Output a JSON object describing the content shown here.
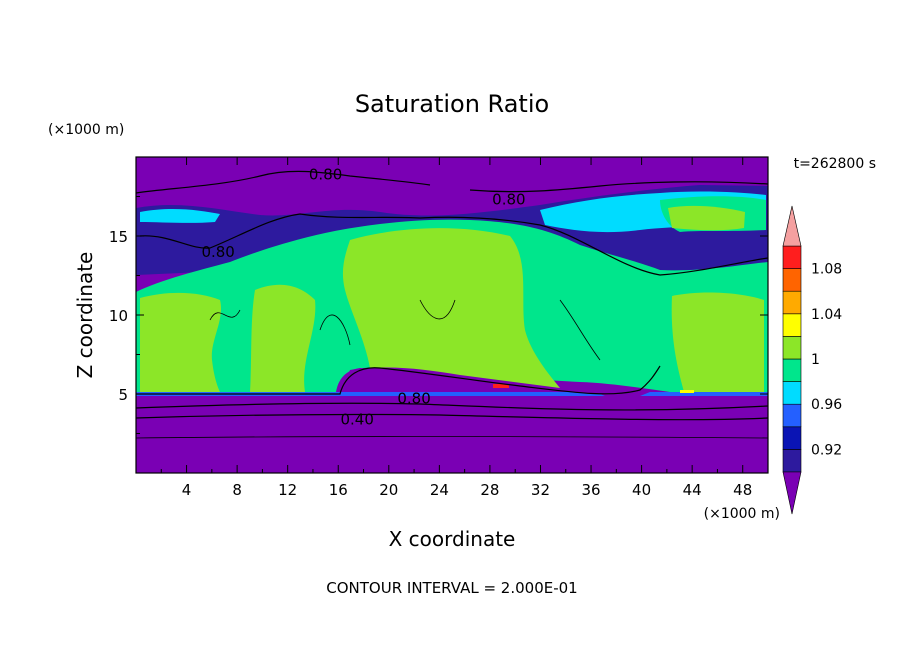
{
  "chart_data": {
    "type": "heatmap",
    "title": "Saturation Ratio",
    "xlabel": "X coordinate",
    "ylabel": "Z coordinate",
    "x_unit": "(×1000 m)",
    "y_unit": "(×1000 m)",
    "time_label": "t=262800 s",
    "contour_interval": "CONTOUR INTERVAL = 2.000E-01",
    "xlim": [
      0,
      50
    ],
    "ylim": [
      0,
      20
    ],
    "x_ticks": [
      4,
      8,
      12,
      16,
      20,
      24,
      28,
      32,
      36,
      40,
      44,
      48
    ],
    "y_ticks": [
      5,
      10,
      15
    ],
    "colorbar": {
      "levels": [
        0.9,
        0.92,
        0.94,
        0.96,
        0.98,
        1.0,
        1.02,
        1.04,
        1.06,
        1.08,
        1.1
      ],
      "tick_labels": [
        "0.92",
        "0.96",
        "1",
        "1.04",
        "1.08"
      ],
      "tick_values": [
        0.92,
        0.96,
        1.0,
        1.04,
        1.08
      ],
      "colors": [
        "#2d1a9e",
        "#0a14b4",
        "#2460ff",
        "#00dcff",
        "#00e68c",
        "#8ce628",
        "#ffff00",
        "#ffaa00",
        "#ff6400",
        "#ff1e1e"
      ],
      "under_color": "#7a00b4",
      "over_color": "#f5a0a0"
    },
    "contour_labels": [
      {
        "text": "0.80",
        "x": 15.0,
        "y": 18.9
      },
      {
        "text": "0.80",
        "x": 29.5,
        "y": 17.3
      },
      {
        "text": "0.80",
        "x": 6.5,
        "y": 14.0
      },
      {
        "text": "0.80",
        "x": 22.0,
        "y": 4.7
      },
      {
        "text": "0.40",
        "x": 17.5,
        "y": 3.4
      }
    ]
  }
}
